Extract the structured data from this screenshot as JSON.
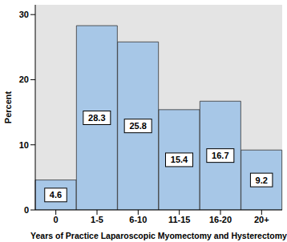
{
  "chart_data": {
    "type": "bar",
    "categories": [
      "0",
      "1-5",
      "6-10",
      "11-15",
      "16-20",
      "20+"
    ],
    "values": [
      4.6,
      28.3,
      25.8,
      15.4,
      16.7,
      9.2
    ],
    "color": "#a7c7e7",
    "x_label": "Years of Practice Laparoscopic Myomectomy and Hysterectomy",
    "y_label": "Percent",
    "ylim": [
      0,
      31.5
    ],
    "yticks": [
      0,
      10,
      20,
      30
    ],
    "grid": false,
    "data_labels": true
  }
}
